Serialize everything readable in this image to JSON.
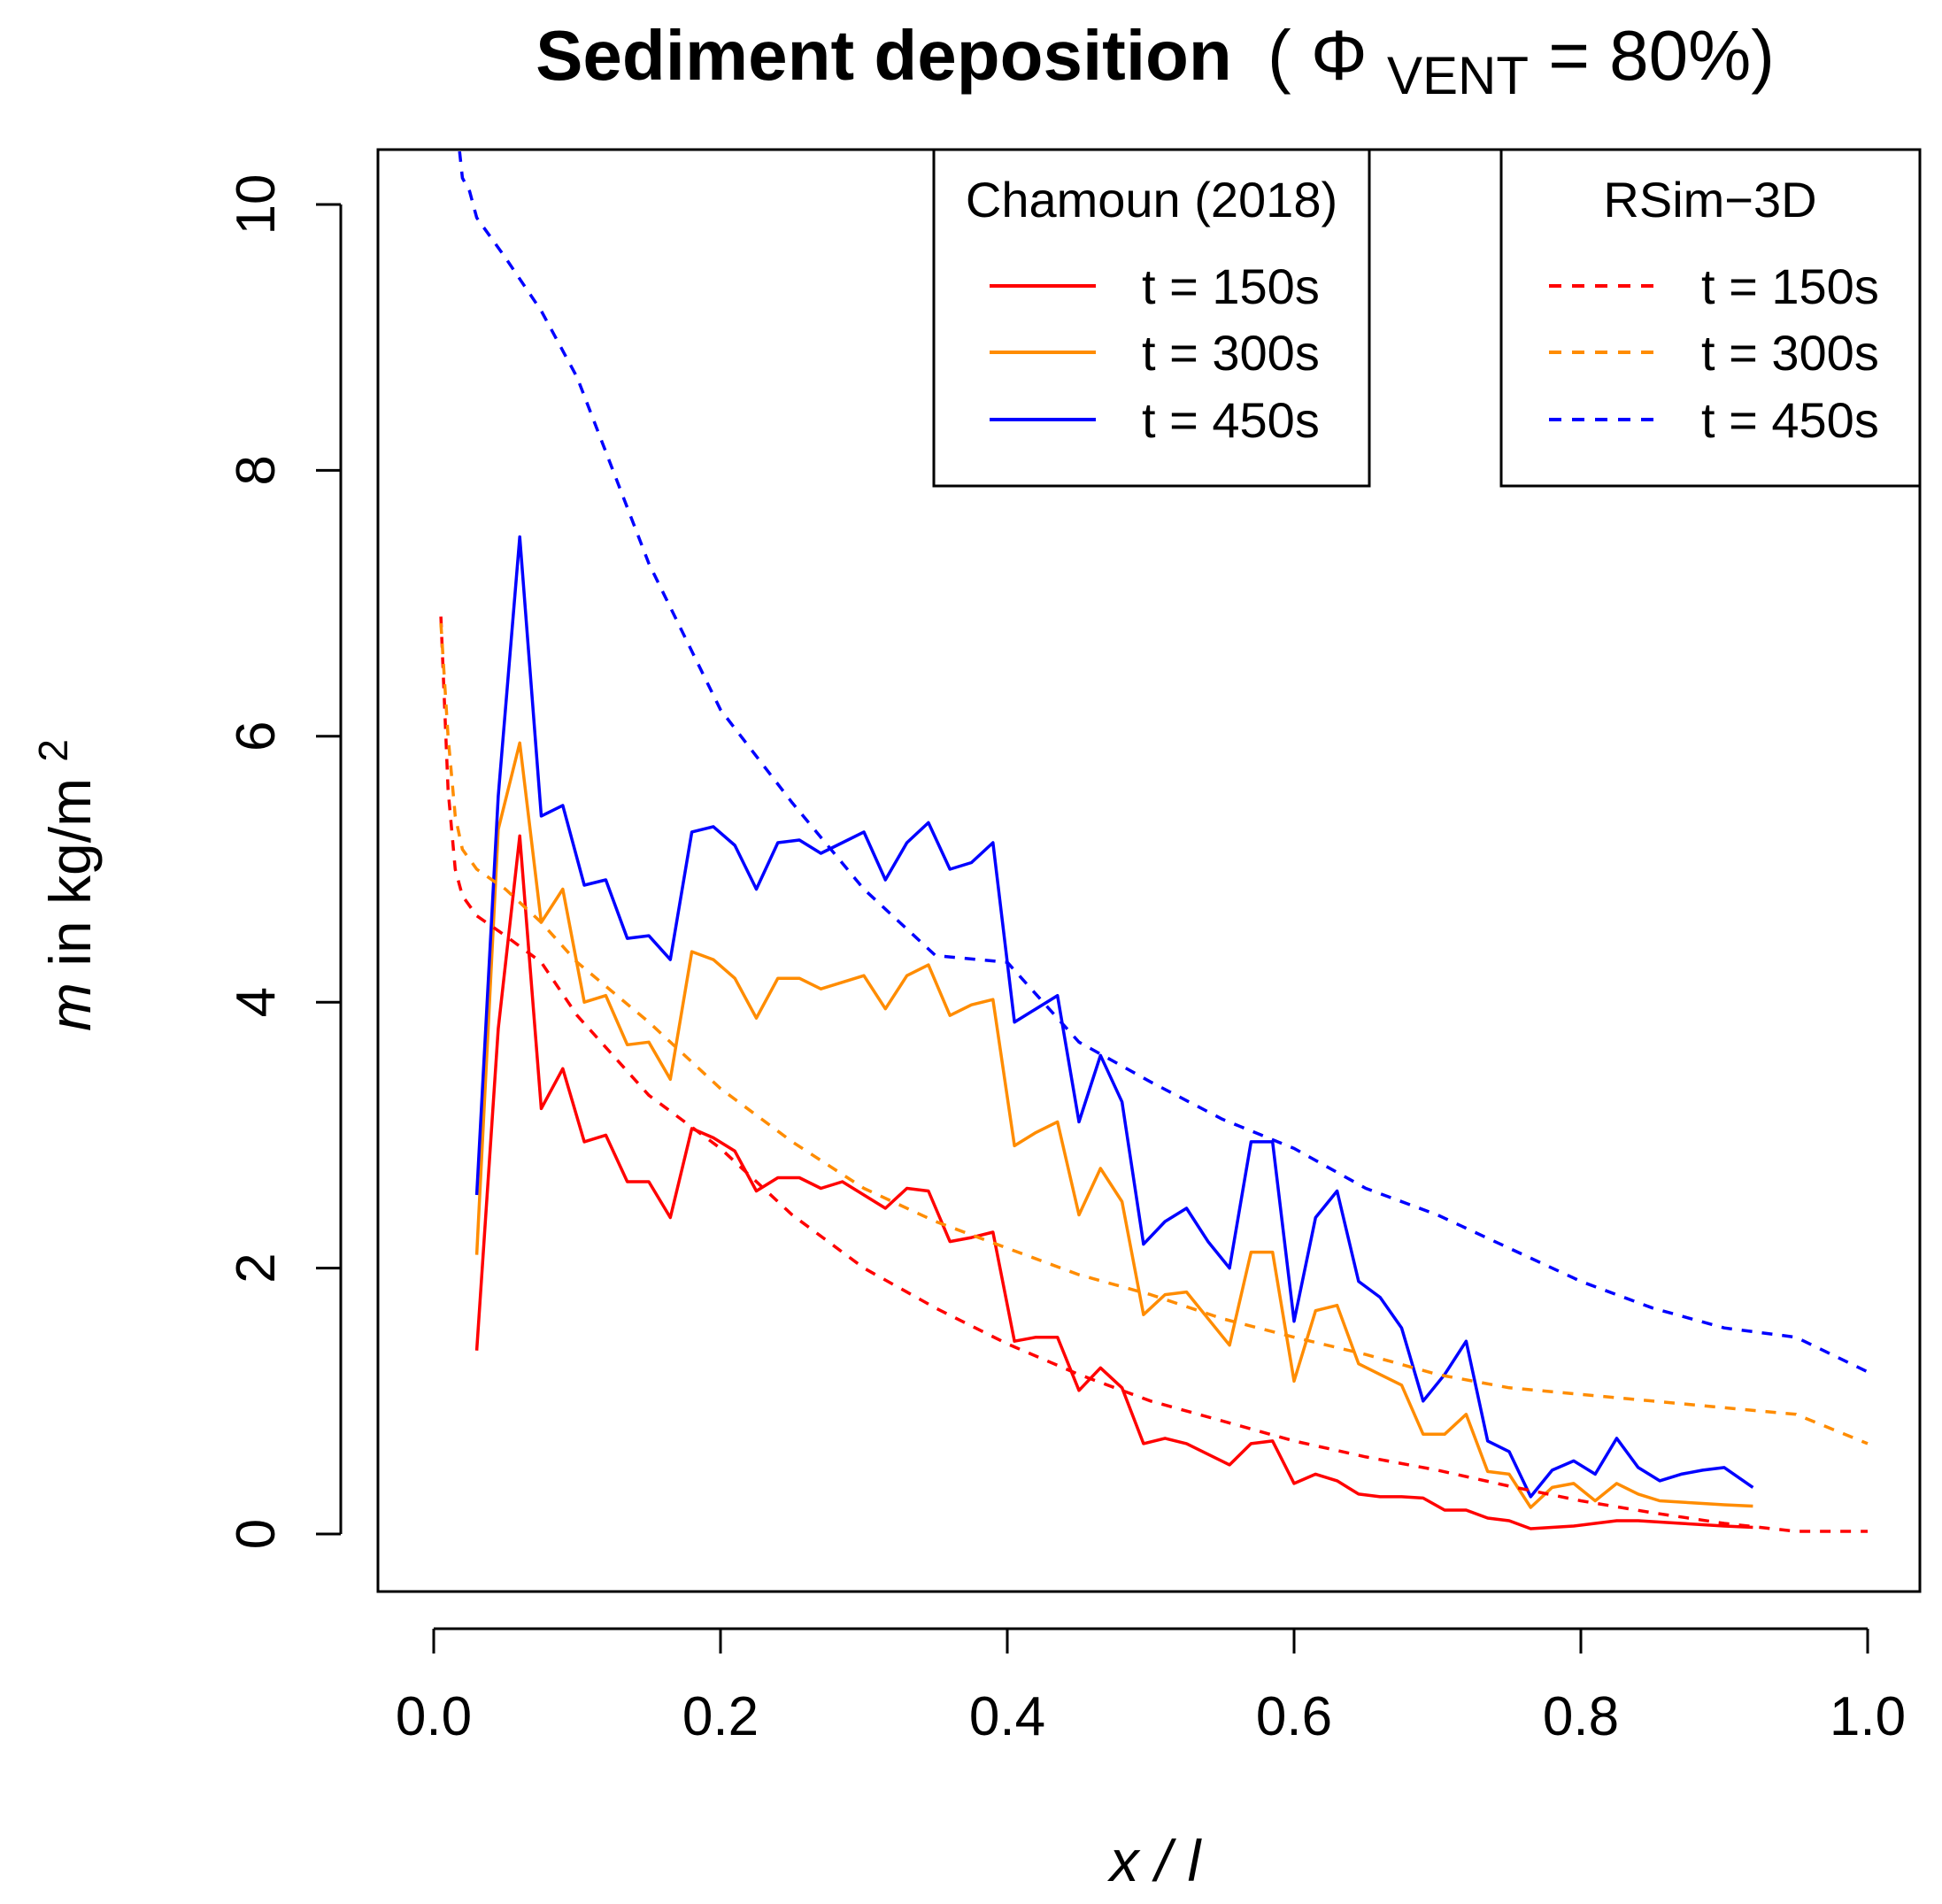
{
  "chart_data": {
    "type": "line",
    "title": {
      "main": "Sediment deposition",
      "open": "(",
      "phi": "Φ",
      "subscript": "VENT",
      "rest": " = 80%)"
    },
    "xlabel": {
      "var": "x",
      "sep": "/",
      "unit": "l"
    },
    "ylabel": {
      "var": "m",
      "text": " in kg/m",
      "sup": "2"
    },
    "xlim": [
      0.0,
      1.0
    ],
    "ylim": [
      0,
      10
    ],
    "xticks": [
      "0.0",
      "0.2",
      "0.4",
      "0.6",
      "0.8",
      "1.0"
    ],
    "yticks": [
      "0",
      "2",
      "4",
      "6",
      "8",
      "10"
    ],
    "grid": false,
    "legends": [
      {
        "title": "Chamoun (2018)",
        "placement": "top-center",
        "entries": [
          {
            "label": "t = 150s",
            "color": "#ff0000",
            "style": "solid"
          },
          {
            "label": "t = 300s",
            "color": "#ff8c00",
            "style": "solid"
          },
          {
            "label": "t = 450s",
            "color": "#0000ff",
            "style": "solid"
          }
        ]
      },
      {
        "title": "RSim−3D",
        "placement": "top-right",
        "entries": [
          {
            "label": "t = 150s",
            "color": "#ff0000",
            "style": "dashed"
          },
          {
            "label": "t = 300s",
            "color": "#ff8c00",
            "style": "dashed"
          },
          {
            "label": "t = 450s",
            "color": "#0000ff",
            "style": "dashed"
          }
        ]
      }
    ],
    "series": [
      {
        "name": "Chamoun (2018) t = 150s",
        "color": "#ff0000",
        "style": "solid",
        "x": [
          0.03,
          0.045,
          0.06,
          0.075,
          0.09,
          0.105,
          0.12,
          0.135,
          0.15,
          0.165,
          0.18,
          0.195,
          0.21,
          0.225,
          0.24,
          0.255,
          0.27,
          0.285,
          0.3,
          0.315,
          0.33,
          0.345,
          0.36,
          0.375,
          0.39,
          0.405,
          0.42,
          0.435,
          0.45,
          0.465,
          0.48,
          0.495,
          0.51,
          0.525,
          0.54,
          0.555,
          0.57,
          0.585,
          0.6,
          0.615,
          0.63,
          0.645,
          0.66,
          0.675,
          0.69,
          0.705,
          0.72,
          0.735,
          0.75,
          0.765,
          0.78,
          0.795,
          0.81,
          0.825,
          0.84,
          0.855,
          0.87,
          0.885,
          0.9,
          0.92
        ],
        "y": [
          1.38,
          3.8,
          5.25,
          3.2,
          3.5,
          2.95,
          3.0,
          2.65,
          2.65,
          2.38,
          3.05,
          2.98,
          2.88,
          2.58,
          2.68,
          2.68,
          2.6,
          2.65,
          2.55,
          2.45,
          2.6,
          2.58,
          2.2,
          2.23,
          2.27,
          1.45,
          1.48,
          1.48,
          1.08,
          1.25,
          1.1,
          0.68,
          0.72,
          0.68,
          0.6,
          0.52,
          0.68,
          0.7,
          0.38,
          0.45,
          0.4,
          0.3,
          0.28,
          0.28,
          0.27,
          0.18,
          0.18,
          0.12,
          0.1,
          0.04,
          0.05,
          0.06,
          0.08,
          0.1,
          0.1,
          0.09,
          0.08,
          0.07,
          0.06,
          0.05
        ]
      },
      {
        "name": "Chamoun (2018) t = 300s",
        "color": "#ff8c00",
        "style": "solid",
        "x": [
          0.03,
          0.045,
          0.06,
          0.075,
          0.09,
          0.105,
          0.12,
          0.135,
          0.15,
          0.165,
          0.18,
          0.195,
          0.21,
          0.225,
          0.24,
          0.255,
          0.27,
          0.285,
          0.3,
          0.315,
          0.33,
          0.345,
          0.36,
          0.375,
          0.39,
          0.405,
          0.42,
          0.435,
          0.45,
          0.465,
          0.48,
          0.495,
          0.51,
          0.525,
          0.54,
          0.555,
          0.57,
          0.585,
          0.6,
          0.615,
          0.63,
          0.645,
          0.66,
          0.675,
          0.69,
          0.705,
          0.72,
          0.735,
          0.75,
          0.765,
          0.78,
          0.795,
          0.81,
          0.825,
          0.84,
          0.855,
          0.87,
          0.885,
          0.9,
          0.92
        ],
        "y": [
          2.1,
          5.3,
          5.95,
          4.6,
          4.85,
          4.0,
          4.05,
          3.68,
          3.7,
          3.42,
          4.38,
          4.32,
          4.18,
          3.88,
          4.18,
          4.18,
          4.1,
          4.15,
          4.2,
          3.95,
          4.2,
          4.28,
          3.9,
          3.98,
          4.02,
          2.92,
          3.02,
          3.1,
          2.4,
          2.75,
          2.5,
          1.65,
          1.8,
          1.82,
          1.62,
          1.42,
          2.12,
          2.12,
          1.15,
          1.68,
          1.72,
          1.28,
          1.2,
          1.12,
          0.75,
          0.75,
          0.9,
          0.47,
          0.45,
          0.2,
          0.35,
          0.38,
          0.25,
          0.38,
          0.3,
          0.25,
          0.24,
          0.23,
          0.22,
          0.21
        ]
      },
      {
        "name": "Chamoun (2018) t = 450s",
        "color": "#0000ff",
        "style": "solid",
        "x": [
          0.03,
          0.045,
          0.06,
          0.075,
          0.09,
          0.105,
          0.12,
          0.135,
          0.15,
          0.165,
          0.18,
          0.195,
          0.21,
          0.225,
          0.24,
          0.255,
          0.27,
          0.285,
          0.3,
          0.315,
          0.33,
          0.345,
          0.36,
          0.375,
          0.39,
          0.405,
          0.42,
          0.435,
          0.45,
          0.465,
          0.48,
          0.495,
          0.51,
          0.525,
          0.54,
          0.555,
          0.57,
          0.585,
          0.6,
          0.615,
          0.63,
          0.645,
          0.66,
          0.675,
          0.69,
          0.705,
          0.72,
          0.735,
          0.75,
          0.765,
          0.78,
          0.795,
          0.81,
          0.825,
          0.84,
          0.855,
          0.87,
          0.885,
          0.9,
          0.92
        ],
        "y": [
          2.55,
          5.55,
          7.5,
          5.4,
          5.48,
          4.88,
          4.92,
          4.48,
          4.5,
          4.32,
          5.28,
          5.32,
          5.18,
          4.85,
          5.2,
          5.22,
          5.12,
          5.2,
          5.28,
          4.92,
          5.2,
          5.35,
          5.0,
          5.05,
          5.2,
          3.85,
          3.95,
          4.05,
          3.1,
          3.6,
          3.25,
          2.18,
          2.35,
          2.45,
          2.2,
          2.0,
          2.95,
          2.95,
          1.6,
          2.38,
          2.58,
          1.9,
          1.78,
          1.55,
          1.0,
          1.2,
          1.45,
          0.7,
          0.62,
          0.28,
          0.48,
          0.55,
          0.45,
          0.72,
          0.5,
          0.4,
          0.45,
          0.48,
          0.5,
          0.35
        ]
      },
      {
        "name": "RSim-3D t = 150s",
        "color": "#ff0000",
        "style": "dashed",
        "x": [
          0.005,
          0.01,
          0.015,
          0.02,
          0.03,
          0.05,
          0.075,
          0.1,
          0.15,
          0.2,
          0.25,
          0.3,
          0.35,
          0.4,
          0.45,
          0.5,
          0.55,
          0.6,
          0.65,
          0.7,
          0.75,
          0.8,
          0.85,
          0.9,
          0.95,
          1.0
        ],
        "y": [
          6.9,
          5.6,
          5.0,
          4.8,
          4.65,
          4.5,
          4.3,
          3.9,
          3.3,
          2.9,
          2.4,
          2.0,
          1.7,
          1.43,
          1.2,
          1.0,
          0.85,
          0.7,
          0.58,
          0.48,
          0.36,
          0.25,
          0.16,
          0.08,
          0.02,
          0.02
        ]
      },
      {
        "name": "RSim-3D t = 300s",
        "color": "#ff8c00",
        "style": "dashed",
        "x": [
          0.005,
          0.01,
          0.015,
          0.02,
          0.03,
          0.05,
          0.075,
          0.1,
          0.15,
          0.2,
          0.25,
          0.3,
          0.35,
          0.4,
          0.45,
          0.5,
          0.55,
          0.6,
          0.65,
          0.7,
          0.75,
          0.8,
          0.85,
          0.9,
          0.95,
          1.0
        ],
        "y": [
          6.85,
          6.0,
          5.4,
          5.15,
          5.0,
          4.85,
          4.6,
          4.3,
          3.85,
          3.35,
          2.95,
          2.6,
          2.35,
          2.15,
          1.95,
          1.8,
          1.62,
          1.48,
          1.35,
          1.2,
          1.1,
          1.05,
          1.0,
          0.95,
          0.9,
          0.68
        ]
      },
      {
        "name": "RSim-3D t = 450s",
        "color": "#0000ff",
        "style": "dashed",
        "x": [
          0.018,
          0.02,
          0.025,
          0.03,
          0.05,
          0.075,
          0.1,
          0.15,
          0.2,
          0.25,
          0.3,
          0.35,
          0.4,
          0.45,
          0.5,
          0.55,
          0.6,
          0.65,
          0.7,
          0.75,
          0.8,
          0.85,
          0.9,
          0.95,
          1.0
        ],
        "y": [
          10.4,
          10.2,
          10.1,
          9.9,
          9.6,
          9.2,
          8.7,
          7.3,
          6.2,
          5.5,
          4.85,
          4.35,
          4.3,
          3.7,
          3.4,
          3.12,
          2.9,
          2.6,
          2.4,
          2.15,
          1.9,
          1.7,
          1.55,
          1.48,
          1.22
        ]
      }
    ]
  }
}
